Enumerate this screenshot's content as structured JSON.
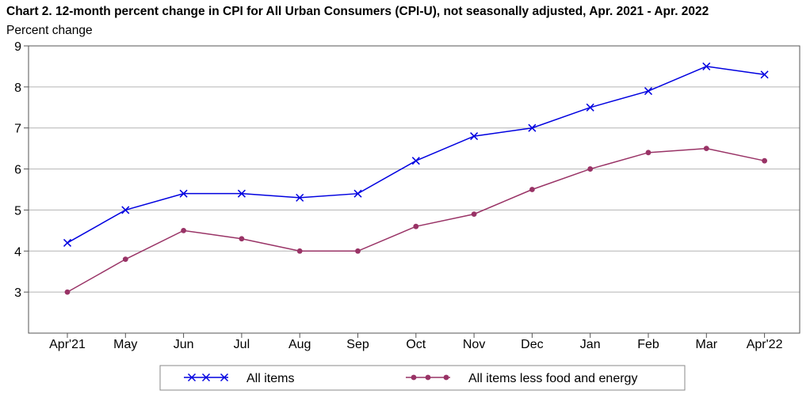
{
  "chart_data": {
    "type": "line",
    "title": "Chart 2. 12-month percent change in CPI for All Urban Consumers (CPI-U), not seasonally adjusted, Apr. 2021 - Apr. 2022",
    "ylabel": "Percent change",
    "xlabel": "",
    "categories": [
      "Apr'21",
      "May",
      "Jun",
      "Jul",
      "Aug",
      "Sep",
      "Oct",
      "Nov",
      "Dec",
      "Jan",
      "Feb",
      "Mar",
      "Apr'22"
    ],
    "ylim": [
      2,
      9
    ],
    "yticks": [
      3,
      4,
      5,
      6,
      7,
      8,
      9
    ],
    "grid": true,
    "legend_position": "bottom",
    "series": [
      {
        "name": "All items",
        "color": "#0000e0",
        "marker": "x",
        "values": [
          4.2,
          5.0,
          5.4,
          5.4,
          5.3,
          5.4,
          6.2,
          6.8,
          7.0,
          7.5,
          7.9,
          8.5,
          8.3
        ]
      },
      {
        "name": "All items less food and energy",
        "color": "#993366",
        "marker": "circle",
        "values": [
          3.0,
          3.8,
          4.5,
          4.3,
          4.0,
          4.0,
          4.6,
          4.9,
          5.5,
          6.0,
          6.4,
          6.5,
          6.2
        ]
      }
    ]
  }
}
